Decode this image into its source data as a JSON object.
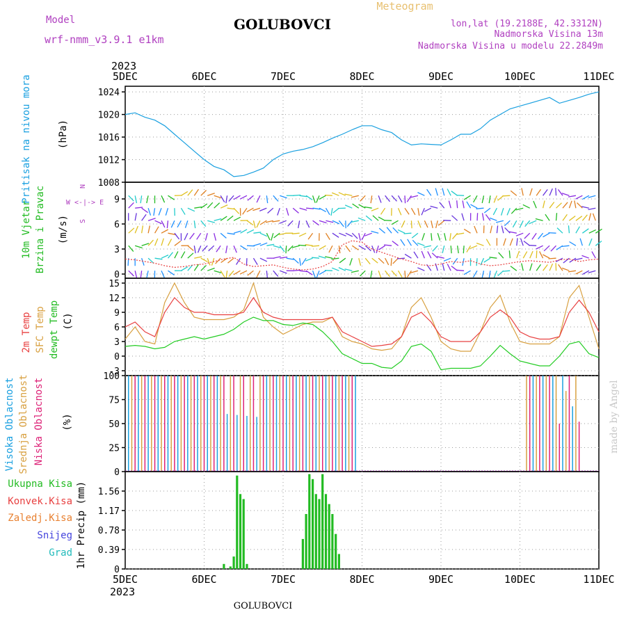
{
  "header": {
    "model_label": "Model",
    "model_name": "wrf-nmm_v3.9.1 e1km",
    "title": "GOLUBOVCI",
    "subtitle": "Meteogram",
    "lonlat": "lon,lat (19.2188E, 42.3312N)",
    "elevation": "Nadmorska Visina 13m",
    "model_elevation": "Nadmorska Visina u modelu 22.2849m",
    "footer": "GOLUBOVCI",
    "watermark": "made by Angel"
  },
  "colors": {
    "pressure": "#1aa0e0",
    "wind_label": "#22bb22",
    "t2m": "#e84040",
    "sfc": "#d8a040",
    "dewpt": "#22cc22",
    "high_cloud": "#1aa0e0",
    "mid_cloud": "#d8a040",
    "low_cloud": "#dd2277",
    "precip_total": "#22bb22",
    "precip_conv": "#e84040",
    "precip_frozen": "#e88030",
    "snow": "#4444dd",
    "hail": "#22bbbb",
    "violet": "#b040c0"
  },
  "chart_data": [
    {
      "type": "line",
      "id": "pressure",
      "ylabel": "Pritisak na nivou mora",
      "unit": "(hPa)",
      "ylim": [
        1008,
        1025
      ],
      "yticks": [
        1008,
        1012,
        1016,
        1020,
        1024
      ],
      "x_top_year": "2023",
      "x_ticks": [
        "5DEC",
        "6DEC",
        "7DEC",
        "8DEC",
        "9DEC",
        "10DEC",
        "11DEC"
      ],
      "grid": true,
      "series": [
        {
          "values_x": [
            0,
            3,
            6,
            9,
            12,
            15,
            18,
            21,
            24,
            27,
            30,
            33,
            36,
            39,
            42,
            45,
            48,
            51,
            54,
            57,
            60,
            63,
            66,
            69,
            72,
            75,
            78,
            81,
            84,
            87,
            90,
            93,
            96,
            99,
            102,
            105,
            108,
            111,
            114,
            117,
            120,
            123,
            126,
            129,
            132,
            135,
            138,
            141,
            144
          ],
          "values_y": [
            1020,
            1020.3,
            1019.5,
            1019,
            1018,
            1016.5,
            1015,
            1013.5,
            1012,
            1010.8,
            1010.2,
            1009,
            1009.2,
            1009.8,
            1010.5,
            1012,
            1013,
            1013.5,
            1013.8,
            1014.3,
            1015,
            1015.8,
            1016.5,
            1017.3,
            1018,
            1018,
            1017.3,
            1016.8,
            1015.5,
            1014.6,
            1014.8,
            1014.7,
            1014.6,
            1015.5,
            1016.5,
            1016.5,
            1017.5,
            1019,
            1020,
            1021,
            1021.5,
            1022,
            1022.5,
            1023,
            1022,
            1022.5,
            1023,
            1023.6,
            1024
          ]
        }
      ]
    },
    {
      "type": "line",
      "id": "wind",
      "ylabel": "10m Vjetar",
      "ylabel2": "Brzina i Pravac",
      "unit": "(m/s)",
      "compass": [
        "N",
        "W <-|-> E",
        "S"
      ],
      "ylim": [
        -0.5,
        11
      ],
      "yticks": [
        0,
        3,
        6,
        9
      ],
      "grid": true,
      "series": [
        {
          "values_x": [
            0,
            3,
            6,
            9,
            12,
            15,
            18,
            21,
            24,
            27,
            30,
            33,
            36,
            39,
            42,
            45,
            48,
            51,
            54,
            57,
            60,
            63,
            66,
            69,
            72,
            75,
            78,
            81,
            84,
            87,
            90,
            93,
            96,
            99,
            102,
            105,
            108,
            111,
            114,
            117,
            120,
            123,
            126,
            129,
            132,
            135,
            138,
            141,
            144
          ],
          "values_y": [
            1.8,
            1.7,
            1.5,
            1.3,
            1.0,
            0.8,
            0.9,
            1.1,
            1.2,
            1.5,
            1.8,
            2.0,
            1.2,
            0.9,
            1.0,
            1.1,
            0.8,
            0.6,
            0.5,
            0.6,
            0.9,
            1.5,
            3.5,
            4.0,
            3.8,
            3.0,
            2.6,
            2.2,
            1.8,
            1.5,
            1.1,
            1.0,
            1.2,
            1.5,
            1.4,
            1.6,
            1.2,
            1.0,
            1.1,
            1.3,
            1.5,
            1.6,
            1.5,
            1.4,
            1.7,
            1.8,
            1.5,
            1.7,
            1.8
          ]
        }
      ]
    },
    {
      "type": "line",
      "id": "temperature",
      "ylabels": [
        "2m Temp",
        "SFC Temp",
        "dewpt Temp"
      ],
      "unit": "(C)",
      "ylim": [
        -4,
        16
      ],
      "yticks": [
        -3,
        0,
        3,
        6,
        9,
        12,
        15
      ],
      "grid": true,
      "series": [
        {
          "name": "2m Temp",
          "values_x": [
            0,
            3,
            6,
            9,
            12,
            15,
            18,
            21,
            24,
            27,
            30,
            33,
            36,
            39,
            42,
            45,
            48,
            51,
            54,
            57,
            60,
            63,
            66,
            69,
            72,
            75,
            78,
            81,
            84,
            87,
            90,
            93,
            96,
            99,
            102,
            105,
            108,
            111,
            114,
            117,
            120,
            123,
            126,
            129,
            132,
            135,
            138,
            141,
            144
          ],
          "values_y": [
            6,
            7,
            5,
            4,
            9,
            12,
            10,
            9,
            9,
            8.5,
            8.5,
            8.5,
            9,
            12,
            9,
            8,
            7.5,
            7.5,
            7.5,
            7.5,
            7.5,
            8,
            5,
            4,
            3,
            2,
            2.2,
            2.5,
            4,
            8,
            9,
            7,
            4,
            3,
            3,
            3,
            5,
            8,
            9.5,
            8,
            5,
            4,
            3.5,
            3.5,
            4,
            9,
            11.5,
            9,
            5
          ]
        },
        {
          "name": "SFC Temp",
          "values_x": [
            0,
            3,
            6,
            9,
            12,
            15,
            18,
            21,
            24,
            27,
            30,
            33,
            36,
            39,
            42,
            45,
            48,
            51,
            54,
            57,
            60,
            63,
            66,
            69,
            72,
            75,
            78,
            81,
            84,
            87,
            90,
            93,
            96,
            99,
            102,
            105,
            108,
            111,
            114,
            117,
            120,
            123,
            126,
            129,
            132,
            135,
            138,
            141,
            144
          ],
          "values_y": [
            3.5,
            6,
            3,
            2.5,
            11,
            15,
            11,
            8,
            7.5,
            7.5,
            7.5,
            8,
            9.5,
            15,
            8,
            6,
            4.5,
            5.5,
            6.5,
            7,
            7,
            8,
            4,
            3,
            2.5,
            1.5,
            1.2,
            1.5,
            4,
            10,
            12,
            8,
            3,
            1.5,
            1,
            1,
            5,
            10,
            12.5,
            7,
            3,
            2.5,
            2.5,
            2.5,
            4,
            12,
            14.5,
            8,
            1.5
          ]
        },
        {
          "name": "dewpt Temp",
          "values_x": [
            0,
            3,
            6,
            9,
            12,
            15,
            18,
            21,
            24,
            27,
            30,
            33,
            36,
            39,
            42,
            45,
            48,
            51,
            54,
            57,
            60,
            63,
            66,
            69,
            72,
            75,
            78,
            81,
            84,
            87,
            90,
            93,
            96,
            99,
            102,
            105,
            108,
            111,
            114,
            117,
            120,
            123,
            126,
            129,
            132,
            135,
            138,
            141,
            144
          ],
          "values_y": [
            2,
            2.2,
            2,
            1.5,
            1.8,
            3,
            3.5,
            4,
            3.5,
            4,
            4.5,
            5.5,
            7,
            8,
            7.3,
            7.3,
            6.5,
            6.3,
            6.8,
            6.5,
            5,
            3,
            0.5,
            -0.5,
            -1.5,
            -1.5,
            -2.3,
            -2.5,
            -1,
            2,
            2.5,
            1,
            -2.8,
            -2.5,
            -2.5,
            -2.5,
            -2,
            0,
            2.2,
            0.5,
            -1,
            -1.5,
            -2,
            -2,
            0,
            2.5,
            3,
            0.5,
            -0.3
          ]
        }
      ]
    },
    {
      "type": "bar",
      "id": "cloud",
      "ylabels": [
        "Visoka Oblacnost",
        "Srednja Oblacnost",
        "Niska Oblacnost"
      ],
      "unit": "(%)",
      "ylim": [
        0,
        100
      ],
      "yticks": [
        0,
        25,
        50,
        75,
        100
      ],
      "grid": true
    },
    {
      "type": "bar",
      "id": "precip",
      "legend": [
        "Ukupna Kisa",
        "Konvek.Kisa",
        "Zaledj.Kisa",
        "Snijeg",
        "Grad"
      ],
      "ylabel": "1hr Precip (mm)",
      "ylim": [
        0,
        1.95
      ],
      "yticks": [
        0,
        0.39,
        0.78,
        1.17,
        1.56
      ],
      "ytick_labels": [
        "0",
        "0.39",
        "0.78",
        "1.17",
        "1.56"
      ],
      "x_bottom_year": "2023",
      "grid": true,
      "series": [
        {
          "name": "Ukupna Kisa",
          "values_x": [
            30,
            32,
            33,
            34,
            35,
            36,
            37,
            54,
            55,
            56,
            57,
            58,
            59,
            60,
            61,
            62,
            63,
            64,
            65
          ],
          "values_y": [
            0.1,
            0.05,
            0.25,
            1.87,
            1.5,
            1.4,
            0.1,
            0.6,
            1.1,
            1.9,
            1.8,
            1.5,
            1.4,
            1.9,
            1.5,
            1.3,
            1.1,
            0.7,
            0.3
          ]
        }
      ]
    }
  ]
}
